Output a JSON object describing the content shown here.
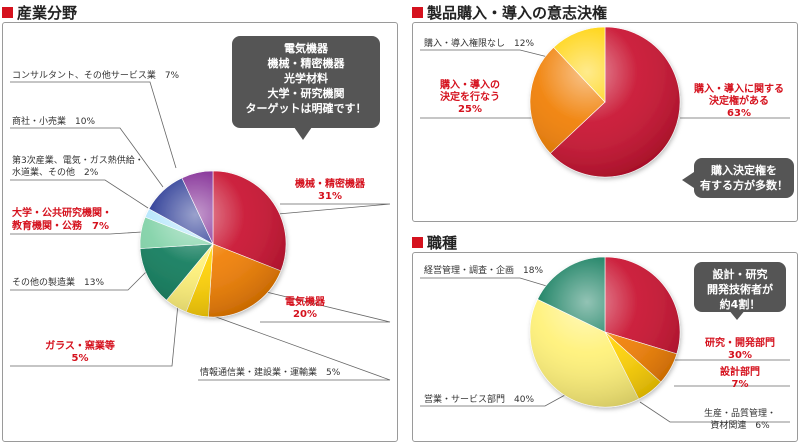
{
  "sections": {
    "industry_title": "産業分野",
    "purchase_title": "製品購入・導入の意志決権",
    "job_title": "職種"
  },
  "callouts": {
    "industry": [
      "電気機器",
      "機械・精密機器",
      "光学材料",
      "大学・研究機関",
      "ターゲットは明確です！"
    ],
    "purchase": [
      "購入決定権を",
      "有する方が多数！"
    ],
    "job": [
      "設計・研究",
      "開発技術者が",
      "約4割！"
    ]
  },
  "chart_data": [
    {
      "type": "pie",
      "id": "industry",
      "title": "産業分野",
      "slices": [
        {
          "label": "機械・精密機器",
          "value": 31,
          "value_label": "31%",
          "color": "#c8102e"
        },
        {
          "label": "電気機器",
          "value": 20,
          "value_label": "20%",
          "color": "#f07d00"
        },
        {
          "label": "情報通信業・建設業・運輸業",
          "value": 5,
          "value_label": "5%",
          "color": "#ffd100"
        },
        {
          "label": "ガラス・窯業等",
          "value": 5,
          "value_label": "5%",
          "color": "#fff176"
        },
        {
          "label": "その他の製造業",
          "value": 13,
          "value_label": "13%",
          "color": "#0e7a5a"
        },
        {
          "label": "大学・公共研究機関・教育機関・公務",
          "value": 7,
          "value_label": "7%",
          "color": "#7fd1a6"
        },
        {
          "label": "第3次産業、電気・ガス熱供給・水道業、その他",
          "value": 2,
          "value_label": "2%",
          "color": "#b3e5fc"
        },
        {
          "label": "商社・小売業",
          "value": 10,
          "value_label": "10%",
          "color": "#1f2f8f"
        },
        {
          "label": "コンサルタント、その他サービス業",
          "value": 7,
          "value_label": "7%",
          "color": "#7b1f8f"
        }
      ]
    },
    {
      "type": "pie",
      "id": "purchase",
      "title": "製品購入・導入の意志決権",
      "slices": [
        {
          "label": "購入・導入に関する決定権がある",
          "value": 63,
          "value_label": "63%",
          "color": "#c8102e"
        },
        {
          "label": "購入・導入の決定を行なう",
          "value": 25,
          "value_label": "25%",
          "color": "#f07d00"
        },
        {
          "label": "購入・導入権限なし",
          "value": 12,
          "value_label": "12%",
          "color": "#ffd100"
        }
      ]
    },
    {
      "type": "pie",
      "id": "job",
      "title": "職種",
      "slices": [
        {
          "label": "研究・開発部門",
          "value": 30,
          "value_label": "30%",
          "color": "#c8102e"
        },
        {
          "label": "設計部門",
          "value": 7,
          "value_label": "7%",
          "color": "#f07d00"
        },
        {
          "label": "生産・品質管理・資材関連",
          "value": 6,
          "value_label": "6%",
          "color": "#ffd100"
        },
        {
          "label": "営業・サービス部門",
          "value": 40,
          "value_label": "40%",
          "color": "#fff176"
        },
        {
          "label": "経営管理・調査・企画",
          "value": 18,
          "value_label": "18%",
          "color": "#0e7a5a"
        }
      ]
    }
  ],
  "labels": {
    "ind_consult": "コンサルタント、その他サービス業　7%",
    "ind_trade": "商社・小売業　10%",
    "ind_tertiary_1": "第3次産業、電気・ガス熱供給・",
    "ind_tertiary_2": "水道業、その他　2%",
    "ind_univ_1": "大学・公共研究機関・",
    "ind_univ_2": "教育機関・公務　7%",
    "ind_other_mfg": "その他の製造業　13%",
    "ind_glass_1": "ガラス・窯業等",
    "ind_glass_2": "5%",
    "ind_info": "情報通信業・建設業・運輸業　5%",
    "ind_elec_1": "電気機器",
    "ind_elec_2": "20%",
    "ind_mach_1": "機械・精密機器",
    "ind_mach_2": "31%",
    "pur_none": "購入・導入権限なし　12%",
    "pur_decide_1": "購入・導入の",
    "pur_decide_2": "決定を行なう",
    "pur_decide_3": "25%",
    "pur_auth_1": "購入・導入に関する",
    "pur_auth_2": "決定権がある",
    "pur_auth_3": "63%",
    "job_mgmt": "経営管理・調査・企画　18%",
    "job_rd_1": "研究・開発部門",
    "job_rd_2": "30%",
    "job_design_1": "設計部門",
    "job_design_2": "7%",
    "job_sales": "営業・サービス部門　40%",
    "job_prod_1": "生産・品質管理・",
    "job_prod_2": "資材関連　6%"
  }
}
